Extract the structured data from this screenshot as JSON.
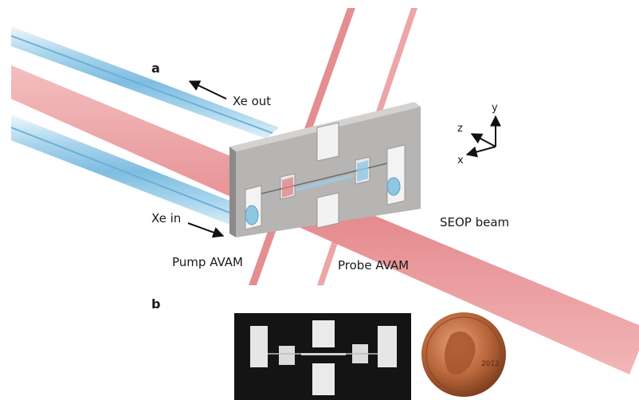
{
  "panels": {
    "a": "a",
    "b": "b"
  },
  "labels": {
    "xe_out": "Xe out",
    "xe_in": "Xe in",
    "pump_avam": "Pump AVAM",
    "probe_avam": "Probe AVAM",
    "seop_beam": "SEOP beam"
  },
  "axes": {
    "x": "x",
    "y": "y",
    "z": "z"
  },
  "coin": {
    "year": "2012"
  },
  "colors": {
    "xe_tube": "#8fc6e2",
    "xe_tube_light": "#d4ebf7",
    "laser_beam": "#e8898b",
    "chip_face": "#b7b5b3",
    "chip_edge": "#8c8a88",
    "photo_chip": "#141414",
    "coin": "#b8653a"
  }
}
